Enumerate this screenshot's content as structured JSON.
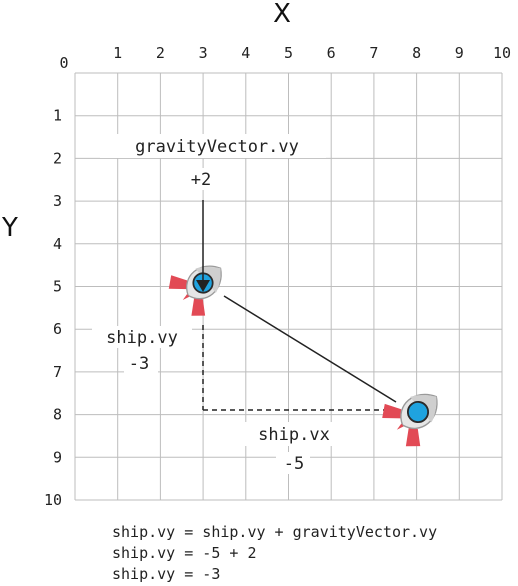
{
  "axes": {
    "x_title": "X",
    "y_title": "Y",
    "origin_label": "0",
    "x_ticks": [
      "1",
      "2",
      "3",
      "4",
      "5",
      "6",
      "7",
      "8",
      "9",
      "10"
    ],
    "y_ticks": [
      "1",
      "2",
      "3",
      "4",
      "5",
      "6",
      "7",
      "8",
      "9",
      "10"
    ],
    "range": [
      0,
      10
    ]
  },
  "annotations": {
    "gravity_name": "gravityVector.vy",
    "gravity_value": "+2",
    "ship_vy_name": "ship.vy",
    "ship_vy_value": "-3",
    "ship_vx_name": "ship.vx",
    "ship_vx_value": "-5"
  },
  "ships": [
    {
      "name": "ship-current",
      "x": 3,
      "y": 5
    },
    {
      "name": "ship-previous",
      "x": 8,
      "y": 8
    }
  ],
  "code_lines": [
    "ship.vy = ship.vy + gravityVector.vy",
    "ship.vy = -5 + 2",
    "ship.vy = -3"
  ],
  "colors": {
    "grid": "#bdbdbd",
    "rocket_body": "#e8e8e8",
    "rocket_fin": "#e24a55",
    "rocket_window": "#1fa3df"
  }
}
